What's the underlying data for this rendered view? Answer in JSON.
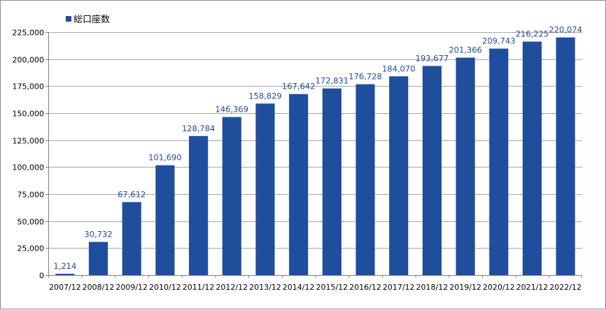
{
  "chart_data": {
    "type": "bar",
    "categories": [
      "2007/12",
      "2008/12",
      "2009/12",
      "2010/12",
      "2011/12",
      "2012/12",
      "2013/12",
      "2014/12",
      "2015/12",
      "2016/12",
      "2017/12",
      "2018/12",
      "2019/12",
      "2020/12",
      "2021/12",
      "2022/12"
    ],
    "series": [
      {
        "name": "総口座数",
        "values": [
          1214,
          30732,
          67612,
          101690,
          128784,
          146369,
          158829,
          167642,
          172831,
          176728,
          184070,
          193677,
          201366,
          209743,
          216225,
          220074
        ],
        "labels": [
          "1,214",
          "30,732",
          "67,612",
          "101,690",
          "128,784",
          "146,369",
          "158,829",
          "167,642",
          "172,831",
          "176,728",
          "184,070",
          "193,677",
          "201,366",
          "209,743",
          "216,225",
          "220,074"
        ]
      }
    ],
    "ylim": [
      0,
      225000
    ],
    "yticks": [
      "0",
      "25,000",
      "50,000",
      "75,000",
      "100,000",
      "125,000",
      "150,000",
      "175,000",
      "200,000",
      "225,000"
    ],
    "grid": true,
    "legend": "top-left",
    "colors": {
      "bar": "#1f4e9c",
      "label": "#1f4e9c",
      "grid": "#a6a6a6"
    }
  }
}
